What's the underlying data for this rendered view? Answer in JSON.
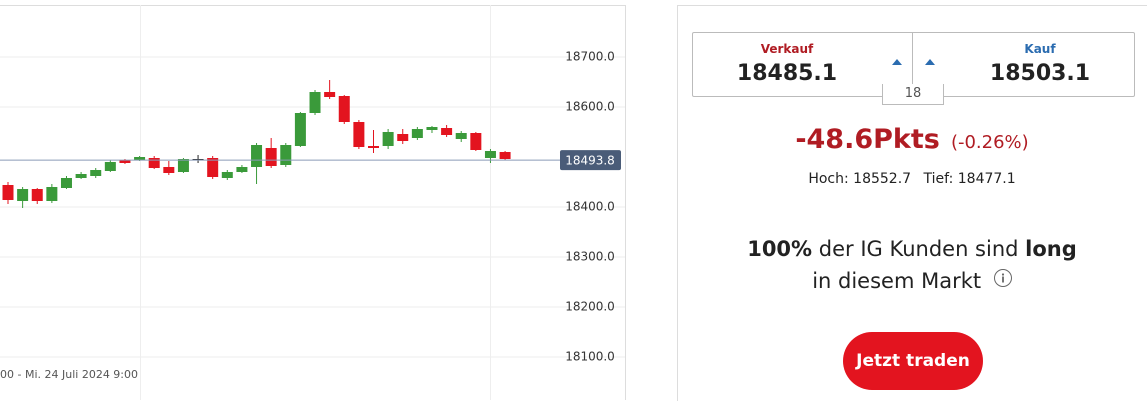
{
  "chart_data": {
    "type": "candlestick",
    "open": [
      18444,
      18412,
      18436,
      18412,
      18438,
      18458,
      18462,
      18472,
      18494,
      18494,
      18498,
      18480,
      18470,
      18496,
      18498,
      18458,
      18470,
      18480,
      18518,
      18484,
      18522,
      18588,
      18630,
      18622,
      18570,
      18522,
      18522,
      18546,
      18538,
      18554,
      18558,
      18536,
      18548,
      18498,
      18510
    ],
    "high": [
      18450,
      18440,
      18438,
      18446,
      18462,
      18470,
      18478,
      18494,
      18496,
      18502,
      18502,
      18492,
      18498,
      18504,
      18502,
      18474,
      18484,
      18528,
      18538,
      18528,
      18590,
      18634,
      18654,
      18624,
      18574,
      18554,
      18556,
      18556,
      18560,
      18562,
      18564,
      18552,
      18550,
      18516,
      18512
    ],
    "low": [
      18406,
      18398,
      18406,
      18408,
      18436,
      18456,
      18458,
      18470,
      18486,
      18492,
      18476,
      18464,
      18468,
      18488,
      18456,
      18454,
      18468,
      18446,
      18478,
      18480,
      18520,
      18584,
      18616,
      18566,
      18516,
      18508,
      18516,
      18526,
      18534,
      18548,
      18540,
      18530,
      18512,
      18488,
      18494
    ],
    "close": [
      18414,
      18436,
      18412,
      18440,
      18458,
      18466,
      18474,
      18490,
      18488,
      18500,
      18478,
      18468,
      18496,
      18496,
      18460,
      18470,
      18480,
      18524,
      18482,
      18524,
      18588,
      18630,
      18620,
      18570,
      18520,
      18518,
      18550,
      18532,
      18556,
      18560,
      18544,
      18548,
      18514,
      18512,
      18496
    ],
    "up_color": "#3a9a3a",
    "down_color": "#e3141f",
    "doji_color": "#222222",
    "ylim": [
      18014,
      18814
    ],
    "yticks": [
      {
        "value": 18700,
        "label": "18700.0"
      },
      {
        "value": 18600,
        "label": "18600.0"
      },
      {
        "value": 18400,
        "label": "18400.0"
      },
      {
        "value": 18300,
        "label": "18300.0"
      },
      {
        "value": 18200,
        "label": "18200.0"
      },
      {
        "value": 18100,
        "label": "18100.0"
      }
    ],
    "last_price": 18493.8,
    "x_label": "00 - Mi. 24 Juli 2024 9:00"
  },
  "quote": {
    "sell_label": "Verkauf",
    "sell": 18485.1,
    "buy_label": "Kauf",
    "buy": 18503.1,
    "spread": 18,
    "change": "-48.6Pkts",
    "change_pct": "(-0.26%)",
    "high_label": "Hoch:",
    "high": 18552.7,
    "low_label": "Tief:",
    "low": 18477.1
  },
  "sentiment": {
    "percent": "100%",
    "text": "der IG Kunden sind",
    "direction": "long",
    "text2": "in diesem Markt"
  },
  "button": "Jetzt traden"
}
